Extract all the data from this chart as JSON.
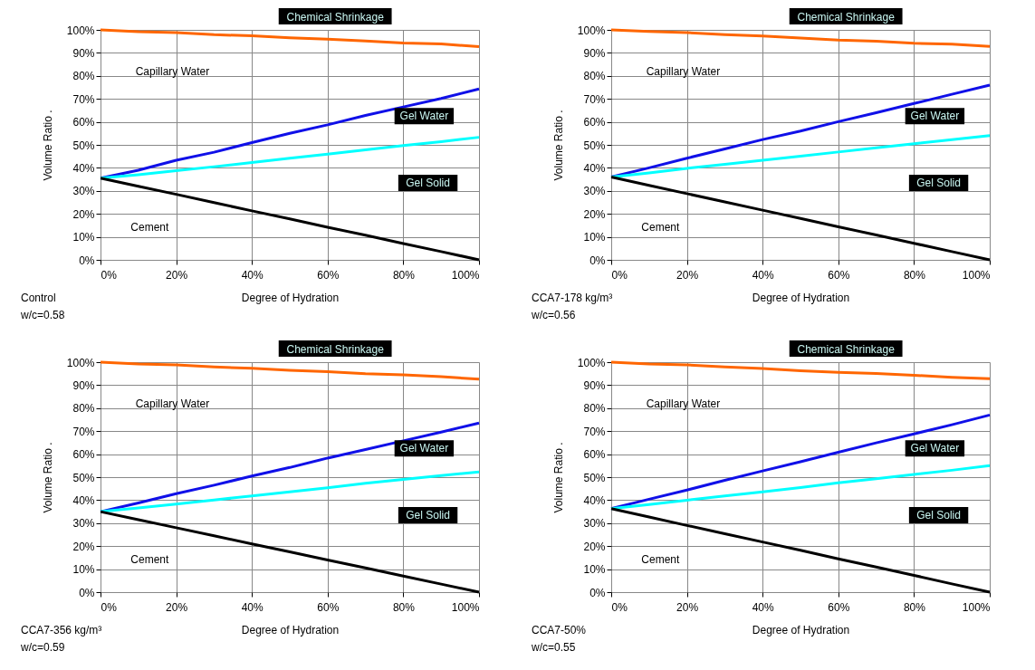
{
  "chart_data": [
    {
      "type": "line",
      "xlabel": "Degree of Hydration",
      "ylabel": "Volume  Ratio    .",
      "x": [
        0,
        10,
        20,
        30,
        40,
        50,
        60,
        70,
        80,
        90,
        100
      ],
      "xlim": [
        0,
        100
      ],
      "ylim": [
        0,
        100
      ],
      "xticks": [
        {
          "value": 0,
          "label": "0%"
        },
        {
          "value": 20,
          "label": "20%"
        },
        {
          "value": 40,
          "label": "40%"
        },
        {
          "value": 60,
          "label": "60%"
        },
        {
          "value": 80,
          "label": "80%"
        },
        {
          "value": 100,
          "label": "100%"
        }
      ],
      "yticks": [
        {
          "value": 0,
          "label": "0%"
        },
        {
          "value": 10,
          "label": "10%"
        },
        {
          "value": 20,
          "label": "20%"
        },
        {
          "value": 30,
          "label": "30%"
        },
        {
          "value": 40,
          "label": "40%"
        },
        {
          "value": 50,
          "label": "50%"
        },
        {
          "value": 60,
          "label": "60%"
        },
        {
          "value": 70,
          "label": "70%"
        },
        {
          "value": 80,
          "label": "80%"
        },
        {
          "value": 90,
          "label": "90%"
        },
        {
          "value": 100,
          "label": "100%"
        }
      ],
      "grid": true,
      "line_style": "solid",
      "marker": "none",
      "series": [
        {
          "color": "#ff6600",
          "values": [
            100,
            99.2,
            98.8,
            97.9,
            97.4,
            96.6,
            96.0,
            95.2,
            94.3,
            93.9,
            92.7
          ]
        },
        {
          "color": "#1010e8",
          "values": [
            35.5,
            39,
            43.3,
            46.8,
            51,
            55,
            58.7,
            62.8,
            66.5,
            70.2,
            74.3
          ]
        },
        {
          "color": "#00ffff",
          "values": [
            35.5,
            37,
            38.8,
            40.5,
            42.3,
            44.2,
            46,
            47.8,
            49.7,
            51.4,
            53.3
          ]
        },
        {
          "color": "#000000",
          "values": [
            35.5,
            32,
            28.5,
            24.9,
            21.3,
            17.8,
            14.2,
            10.7,
            7.1,
            3.6,
            0
          ]
        }
      ],
      "annotations": [
        "Capillary Water",
        "Gel Water",
        "Gel Solid",
        "Cement",
        "Chemical Shrinkage",
        "Control\nw/c=0.58"
      ]
    },
    {
      "type": "line",
      "xlabel": "Degree of Hydration",
      "ylabel": "Volume  Ratio    .",
      "x": [
        0,
        10,
        20,
        30,
        40,
        50,
        60,
        70,
        80,
        90,
        100
      ],
      "xlim": [
        0,
        100
      ],
      "ylim": [
        0,
        100
      ],
      "xticks": [
        {
          "value": 0,
          "label": "0%"
        },
        {
          "value": 20,
          "label": "20%"
        },
        {
          "value": 40,
          "label": "40%"
        },
        {
          "value": 60,
          "label": "60%"
        },
        {
          "value": 80,
          "label": "80%"
        },
        {
          "value": 100,
          "label": "100%"
        }
      ],
      "yticks": [
        {
          "value": 0,
          "label": "0%"
        },
        {
          "value": 10,
          "label": "10%"
        },
        {
          "value": 20,
          "label": "20%"
        },
        {
          "value": 30,
          "label": "30%"
        },
        {
          "value": 40,
          "label": "40%"
        },
        {
          "value": 50,
          "label": "50%"
        },
        {
          "value": 60,
          "label": "60%"
        },
        {
          "value": 70,
          "label": "70%"
        },
        {
          "value": 80,
          "label": "80%"
        },
        {
          "value": 90,
          "label": "90%"
        },
        {
          "value": 100,
          "label": "100%"
        }
      ],
      "grid": true,
      "line_style": "solid",
      "marker": "none",
      "series": [
        {
          "color": "#ff6600",
          "values": [
            100,
            99.3,
            98.8,
            97.9,
            97.3,
            96.5,
            95.6,
            95.1,
            94.2,
            93.8,
            92.8
          ]
        },
        {
          "color": "#1010e8",
          "values": [
            36,
            40,
            44.2,
            48.2,
            52.3,
            56,
            60.1,
            64,
            68,
            72,
            76
          ]
        },
        {
          "color": "#00ffff",
          "values": [
            36,
            37.8,
            39.8,
            41.5,
            43.3,
            45.1,
            46.9,
            48.7,
            50.5,
            52.3,
            54
          ]
        },
        {
          "color": "#000000",
          "values": [
            36,
            32.4,
            28.8,
            25.2,
            21.6,
            18,
            14.4,
            10.8,
            7.2,
            3.6,
            0
          ]
        }
      ],
      "annotations": [
        "Capillary Water",
        "Gel Water",
        "Gel Solid",
        "Cement",
        "Chemical Shrinkage",
        "CCA7-178 kg/m³\nw/c=0.56"
      ]
    },
    {
      "type": "line",
      "xlabel": "Degree of Hydration",
      "ylabel": "Volume  Ratio    .",
      "x": [
        0,
        10,
        20,
        30,
        40,
        50,
        60,
        70,
        80,
        90,
        100
      ],
      "xlim": [
        0,
        100
      ],
      "ylim": [
        0,
        100
      ],
      "xticks": [
        {
          "value": 0,
          "label": "0%"
        },
        {
          "value": 20,
          "label": "20%"
        },
        {
          "value": 40,
          "label": "40%"
        },
        {
          "value": 60,
          "label": "60%"
        },
        {
          "value": 80,
          "label": "80%"
        },
        {
          "value": 100,
          "label": "100%"
        }
      ],
      "yticks": [
        {
          "value": 0,
          "label": "0%"
        },
        {
          "value": 10,
          "label": "10%"
        },
        {
          "value": 20,
          "label": "20%"
        },
        {
          "value": 30,
          "label": "30%"
        },
        {
          "value": 40,
          "label": "40%"
        },
        {
          "value": 50,
          "label": "50%"
        },
        {
          "value": 60,
          "label": "60%"
        },
        {
          "value": 70,
          "label": "70%"
        },
        {
          "value": 80,
          "label": "80%"
        },
        {
          "value": 90,
          "label": "90%"
        },
        {
          "value": 100,
          "label": "100%"
        }
      ],
      "grid": true,
      "line_style": "solid",
      "marker": "none",
      "series": [
        {
          "color": "#ff6600",
          "values": [
            100,
            99.2,
            98.8,
            97.9,
            97.3,
            96.5,
            95.9,
            95.0,
            94.5,
            93.7,
            92.6
          ]
        },
        {
          "color": "#1010e8",
          "values": [
            35,
            38.8,
            42.8,
            46.5,
            50.5,
            54.2,
            58.3,
            62,
            65.8,
            69.6,
            73.5
          ]
        },
        {
          "color": "#00ffff",
          "values": [
            35,
            36.6,
            38.3,
            40.1,
            41.8,
            43.6,
            45.4,
            47.3,
            49,
            50.7,
            52.3
          ]
        },
        {
          "color": "#000000",
          "values": [
            35,
            31.5,
            28,
            24.5,
            21,
            17.5,
            14,
            10.5,
            7,
            3.5,
            0
          ]
        }
      ],
      "annotations": [
        "Capillary Water",
        "Gel Water",
        "Gel Solid",
        "Cement",
        "Chemical Shrinkage",
        "CCA7-356 kg/m³\nw/c=0.59"
      ]
    },
    {
      "type": "line",
      "xlabel": "Degree of Hydration",
      "ylabel": "Volume  Ratio    .",
      "x": [
        0,
        10,
        20,
        30,
        40,
        50,
        60,
        70,
        80,
        90,
        100
      ],
      "xlim": [
        0,
        100
      ],
      "ylim": [
        0,
        100
      ],
      "xticks": [
        {
          "value": 0,
          "label": "0%"
        },
        {
          "value": 20,
          "label": "20%"
        },
        {
          "value": 40,
          "label": "40%"
        },
        {
          "value": 60,
          "label": "60%"
        },
        {
          "value": 80,
          "label": "80%"
        },
        {
          "value": 100,
          "label": "100%"
        }
      ],
      "yticks": [
        {
          "value": 0,
          "label": "0%"
        },
        {
          "value": 10,
          "label": "10%"
        },
        {
          "value": 20,
          "label": "20%"
        },
        {
          "value": 30,
          "label": "30%"
        },
        {
          "value": 40,
          "label": "40%"
        },
        {
          "value": 50,
          "label": "50%"
        },
        {
          "value": 60,
          "label": "60%"
        },
        {
          "value": 70,
          "label": "70%"
        },
        {
          "value": 80,
          "label": "80%"
        },
        {
          "value": 90,
          "label": "90%"
        },
        {
          "value": 100,
          "label": "100%"
        }
      ],
      "grid": true,
      "line_style": "solid",
      "marker": "none",
      "series": [
        {
          "color": "#ff6600",
          "values": [
            100,
            99.2,
            98.8,
            97.9,
            97.2,
            96.3,
            95.6,
            95.1,
            94.3,
            93.4,
            92.8
          ]
        },
        {
          "color": "#1010e8",
          "values": [
            36.3,
            40.4,
            44.4,
            48.6,
            52.7,
            56.7,
            60.8,
            64.9,
            68.8,
            72.8,
            77
          ]
        },
        {
          "color": "#00ffff",
          "values": [
            36.3,
            38.1,
            40,
            41.8,
            43.6,
            45.5,
            47.5,
            49.3,
            51.2,
            53,
            55
          ]
        },
        {
          "color": "#000000",
          "values": [
            36.3,
            32.7,
            29,
            25.4,
            21.8,
            18.2,
            14.5,
            10.9,
            7.3,
            3.6,
            0
          ]
        }
      ],
      "annotations": [
        "Capillary Water",
        "Gel Water",
        "Gel Solid",
        "Cement",
        "Chemical Shrinkage",
        "CCA7-50%\nw/c=0.55"
      ]
    }
  ]
}
